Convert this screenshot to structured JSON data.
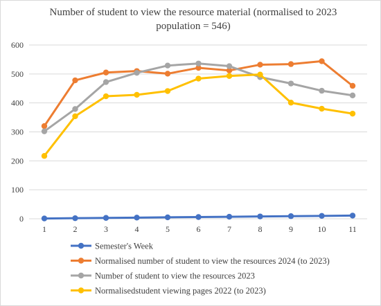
{
  "chart_data": {
    "type": "line",
    "title_lines": [
      "Number of student to view the resource material (normalised to 2023",
      "population = 546)"
    ],
    "x": [
      "1",
      "2",
      "3",
      "4",
      "5",
      "6",
      "7",
      "8",
      "9",
      "10",
      "11"
    ],
    "ylim": [
      0,
      600
    ],
    "yticks": [
      "0",
      "100",
      "200",
      "300",
      "400",
      "500",
      "600"
    ],
    "grid": true,
    "legend_position": "bottom",
    "series": [
      {
        "name": "Semester's Week",
        "color": "#4472c4",
        "values": [
          1,
          2,
          3,
          4,
          5,
          6,
          7,
          8,
          9,
          10,
          11
        ]
      },
      {
        "name": "Normalised number of student to view the resources 2024 (to 2023)",
        "color": "#ed7d31",
        "values": [
          320,
          478,
          505,
          510,
          501,
          521,
          512,
          532,
          534,
          544,
          459
        ]
      },
      {
        "name": "Number of student to view the resources 2023",
        "color": "#a5a5a5",
        "values": [
          302,
          379,
          472,
          504,
          529,
          536,
          527,
          489,
          467,
          442,
          426
        ]
      },
      {
        "name": "Normalisedstudent viewing pages 2022 (to 2023)",
        "color": "#ffc000",
        "values": [
          217,
          354,
          423,
          428,
          441,
          484,
          493,
          498,
          401,
          380,
          363
        ]
      }
    ]
  }
}
